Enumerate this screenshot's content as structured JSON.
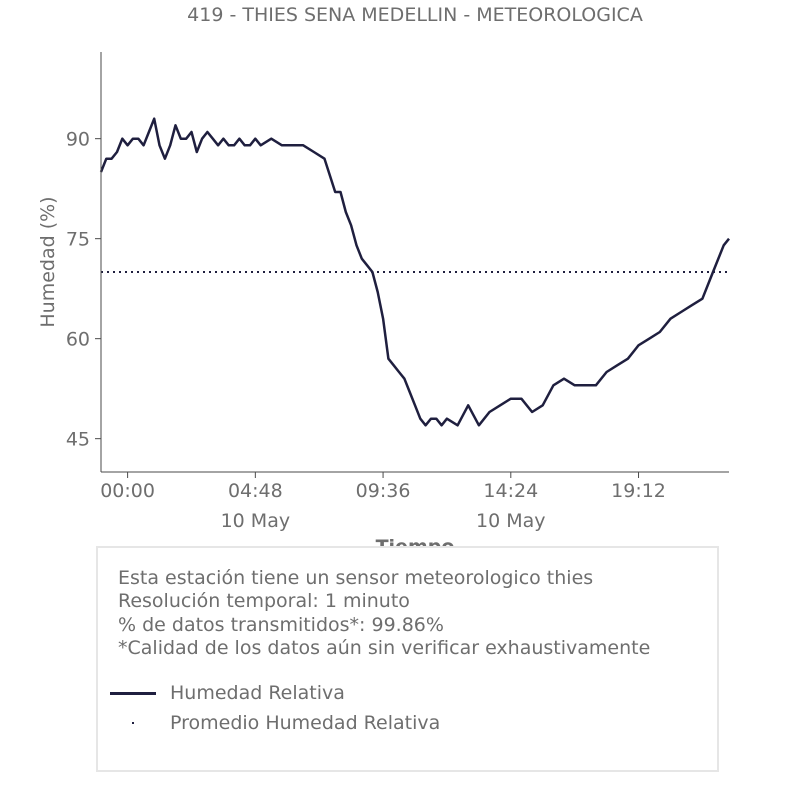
{
  "chart_data": {
    "type": "line",
    "title": "419 - THIES SENA MEDELLIN - METEOROLOGICA",
    "xlabel": "Tiempo",
    "ylabel": "Humedad (%)",
    "xlim": [
      -1.0,
      22.6
    ],
    "ylim": [
      40,
      103
    ],
    "yticks": [
      45,
      60,
      75,
      90
    ],
    "xticks": [
      {
        "value": 0.0,
        "label": "00:00",
        "sublabel": ""
      },
      {
        "value": 4.8,
        "label": "04:48",
        "sublabel": "10 May"
      },
      {
        "value": 9.6,
        "label": "09:36",
        "sublabel": ""
      },
      {
        "value": 14.4,
        "label": "14:24",
        "sublabel": "10 May"
      },
      {
        "value": 19.2,
        "label": "19:12",
        "sublabel": ""
      }
    ],
    "grid": false,
    "series": [
      {
        "name": "Humedad Relativa",
        "color": "#1f1f3f",
        "style": "solid",
        "x": [
          -1.0,
          -0.8,
          -0.6,
          -0.4,
          -0.2,
          0.0,
          0.2,
          0.4,
          0.6,
          0.8,
          1.0,
          1.2,
          1.4,
          1.6,
          1.8,
          2.0,
          2.2,
          2.4,
          2.6,
          2.8,
          3.0,
          3.2,
          3.4,
          3.6,
          3.8,
          4.0,
          4.2,
          4.4,
          4.6,
          4.8,
          5.0,
          5.4,
          5.8,
          6.2,
          6.6,
          7.0,
          7.4,
          7.8,
          8.0,
          8.2,
          8.4,
          8.6,
          8.8,
          9.0,
          9.2,
          9.4,
          9.6,
          9.8,
          10.0,
          10.2,
          10.4,
          10.6,
          10.8,
          11.0,
          11.2,
          11.4,
          11.6,
          11.8,
          12.0,
          12.4,
          12.8,
          13.2,
          13.6,
          14.0,
          14.4,
          14.8,
          15.2,
          15.6,
          16.0,
          16.4,
          16.8,
          17.2,
          17.6,
          18.0,
          18.4,
          18.8,
          19.2,
          19.6,
          20.0,
          20.4,
          20.8,
          21.2,
          21.6,
          22.0,
          22.4,
          22.6
        ],
        "values": [
          85,
          87,
          87,
          88,
          90,
          89,
          90,
          90,
          89,
          91,
          93,
          89,
          87,
          89,
          92,
          90,
          90,
          91,
          88,
          90,
          91,
          90,
          89,
          90,
          89,
          89,
          90,
          89,
          89,
          90,
          89,
          90,
          89,
          89,
          89,
          88,
          87,
          82,
          82,
          79,
          77,
          74,
          72,
          71,
          70,
          67,
          63,
          57,
          56,
          55,
          54,
          52,
          50,
          48,
          47,
          48,
          48,
          47,
          48,
          47,
          50,
          47,
          49,
          50,
          51,
          51,
          49,
          50,
          53,
          54,
          53,
          53,
          53,
          55,
          56,
          57,
          59,
          60,
          61,
          63,
          64,
          65,
          66,
          70,
          74,
          75
        ]
      },
      {
        "name": "Promedio Humedad Relativa",
        "color": "#1f1f3f",
        "style": "dotted",
        "x": [
          -1.0,
          22.6
        ],
        "values": [
          70,
          70
        ]
      }
    ],
    "legend": "bottom-left"
  },
  "info": {
    "lines": [
      "Esta estación tiene un sensor meteorologico thies",
      "Resolución temporal: 1 minuto",
      "% de datos transmitidos*: 99.86%",
      "*Calidad de los datos aún sin verificar exhaustivamente"
    ]
  },
  "colors": {
    "text": "#6e6e6e",
    "axis": "#4a4a4a",
    "line": "#1f1f3f",
    "box_border": "#e6e6e6"
  }
}
